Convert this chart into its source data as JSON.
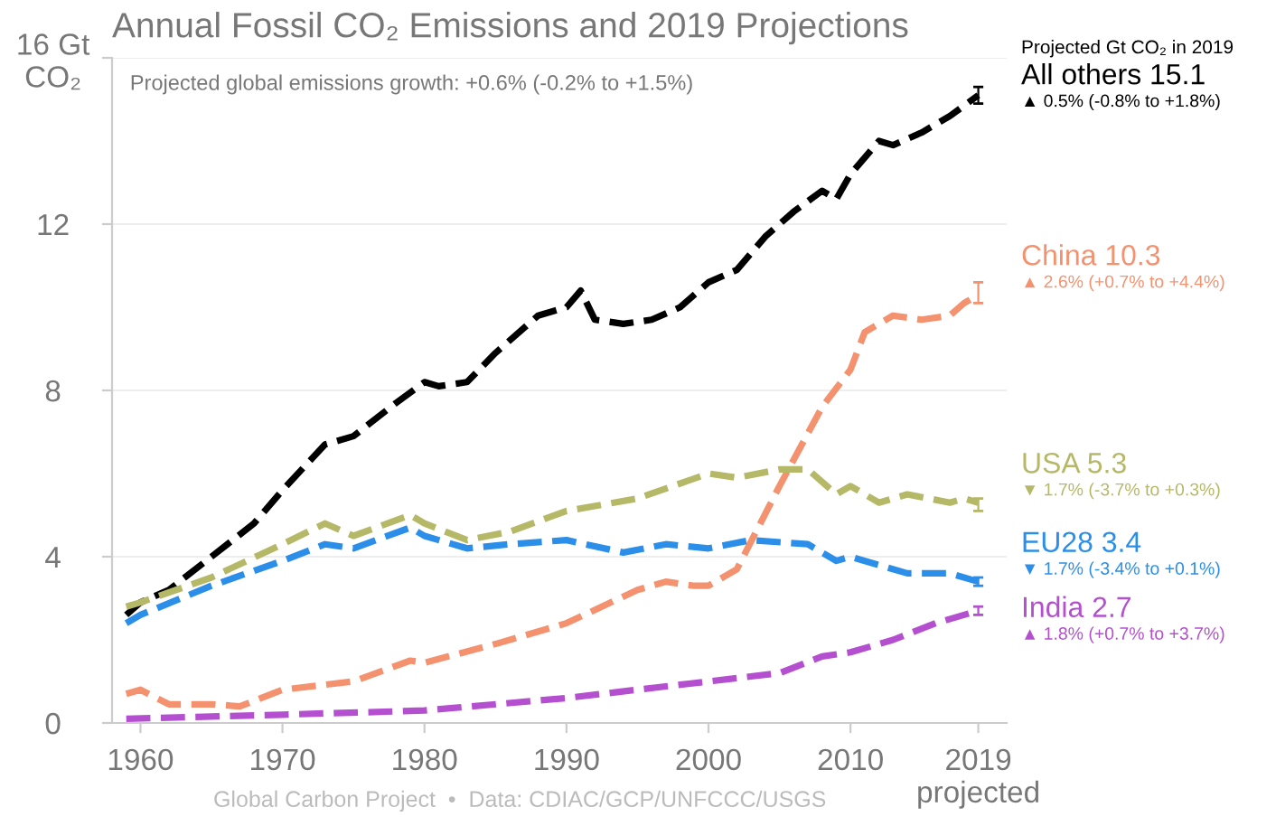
{
  "chart_data": {
    "type": "line",
    "title": "Annual Fossil CO₂ Emissions and 2019 Projections",
    "subtitle": "Projected global emissions growth: +0.6% (-0.2% to +1.5%)",
    "legend_title": "Projected Gt CO₂ in 2019",
    "xlim": [
      1958,
      2021
    ],
    "xticks": [
      1960,
      1970,
      1980,
      1990,
      2000,
      2010,
      {
        "value": 2019,
        "label": "2019\nprojected"
      }
    ],
    "ylim": [
      0,
      16
    ],
    "yticks": [
      0,
      4,
      8,
      12,
      {
        "value": 16,
        "label": "16 Gt\nCO₂"
      }
    ],
    "grid": "y",
    "line_style": "dashed",
    "legend": "right",
    "series": [
      {
        "name": "All others 15.1",
        "color": "#000000",
        "x": [
          1959,
          1960,
          1962,
          1965,
          1968,
          1970,
          1973,
          1975,
          1978,
          1980,
          1981,
          1983,
          1985,
          1988,
          1990,
          1991,
          1992,
          1994,
          1996,
          1998,
          2000,
          2002,
          2004,
          2006,
          2008,
          2009,
          2010,
          2012,
          2013,
          2015,
          2017,
          2019
        ],
        "values": [
          2.6,
          2.9,
          3.2,
          4.0,
          4.8,
          5.6,
          6.7,
          6.9,
          7.7,
          8.2,
          8.1,
          8.2,
          8.9,
          9.8,
          10.0,
          10.4,
          9.7,
          9.6,
          9.7,
          10.0,
          10.6,
          10.9,
          11.7,
          12.3,
          12.8,
          12.6,
          13.2,
          14.0,
          13.9,
          14.2,
          14.6,
          15.1
        ],
        "errors": [
          null,
          null,
          null,
          null,
          null,
          null,
          null,
          null,
          null,
          null,
          null,
          null,
          null,
          null,
          null,
          null,
          null,
          null,
          null,
          null,
          null,
          null,
          null,
          null,
          null,
          null,
          null,
          null,
          null,
          null,
          null,
          [
            14.9,
            15.3
          ]
        ]
      },
      {
        "name": "China 10.3",
        "color": "#f4916f",
        "x": [
          1959,
          1960,
          1962,
          1965,
          1967,
          1970,
          1975,
          1979,
          1980,
          1985,
          1990,
          1995,
          1997,
          1999,
          2000,
          2002,
          2005,
          2008,
          2010,
          2011,
          2013,
          2015,
          2017,
          2018,
          2019
        ],
        "values": [
          0.7,
          0.8,
          0.45,
          0.45,
          0.4,
          0.8,
          1.0,
          1.5,
          1.45,
          1.9,
          2.4,
          3.2,
          3.4,
          3.3,
          3.3,
          3.7,
          5.7,
          7.6,
          8.5,
          9.4,
          9.8,
          9.7,
          9.8,
          10.1,
          10.3
        ],
        "errors": [
          null,
          null,
          null,
          null,
          null,
          null,
          null,
          null,
          null,
          null,
          null,
          null,
          null,
          null,
          null,
          null,
          null,
          null,
          null,
          null,
          null,
          null,
          null,
          null,
          [
            10.1,
            10.6
          ]
        ]
      },
      {
        "name": "USA 5.3",
        "color": "#b5b866",
        "x": [
          1959,
          1960,
          1965,
          1970,
          1973,
          1975,
          1979,
          1980,
          1983,
          1986,
          1990,
          1995,
          2000,
          2002,
          2005,
          2007,
          2009,
          2010,
          2012,
          2014,
          2017,
          2018,
          2019
        ],
        "values": [
          2.8,
          2.9,
          3.5,
          4.3,
          4.8,
          4.5,
          5.0,
          4.8,
          4.4,
          4.6,
          5.1,
          5.4,
          6.0,
          5.9,
          6.1,
          6.1,
          5.5,
          5.7,
          5.3,
          5.5,
          5.3,
          5.4,
          5.3
        ],
        "errors": [
          null,
          null,
          null,
          null,
          null,
          null,
          null,
          null,
          null,
          null,
          null,
          null,
          null,
          null,
          null,
          null,
          null,
          null,
          null,
          null,
          null,
          null,
          [
            5.1,
            5.4
          ]
        ]
      },
      {
        "name": "EU28 3.4",
        "color": "#2b8ee8",
        "x": [
          1959,
          1960,
          1965,
          1970,
          1973,
          1975,
          1979,
          1980,
          1983,
          1986,
          1990,
          1994,
          1997,
          2000,
          2003,
          2007,
          2009,
          2010,
          2014,
          2017,
          2019
        ],
        "values": [
          2.4,
          2.6,
          3.3,
          3.9,
          4.3,
          4.2,
          4.7,
          4.5,
          4.2,
          4.3,
          4.4,
          4.1,
          4.3,
          4.2,
          4.4,
          4.3,
          3.9,
          4.0,
          3.6,
          3.6,
          3.4
        ],
        "errors": [
          null,
          null,
          null,
          null,
          null,
          null,
          null,
          null,
          null,
          null,
          null,
          null,
          null,
          null,
          null,
          null,
          null,
          null,
          null,
          null,
          [
            3.3,
            3.5
          ]
        ]
      },
      {
        "name": "India 2.7",
        "color": "#b44fd0",
        "x": [
          1959,
          1970,
          1980,
          1990,
          2000,
          2005,
          2008,
          2010,
          2013,
          2016,
          2019
        ],
        "values": [
          0.1,
          0.2,
          0.3,
          0.6,
          1.0,
          1.2,
          1.6,
          1.7,
          2.0,
          2.4,
          2.7
        ],
        "errors": [
          null,
          null,
          null,
          null,
          null,
          null,
          null,
          null,
          null,
          null,
          [
            2.6,
            2.8
          ]
        ]
      }
    ],
    "annotations": [
      "▲ 0.5% (-0.8% to +1.8%)",
      "▲ 2.6% (+0.7% to +4.4%)",
      "▼ 1.7% (-3.7% to +0.3%)",
      "▼ 1.7% (-3.4% to +0.1%)",
      "▲ 1.8% (+0.7% to +3.7%)",
      "Global Carbon Project  •  Data: CDIAC/GCP/UNFCCC/USGS"
    ]
  }
}
